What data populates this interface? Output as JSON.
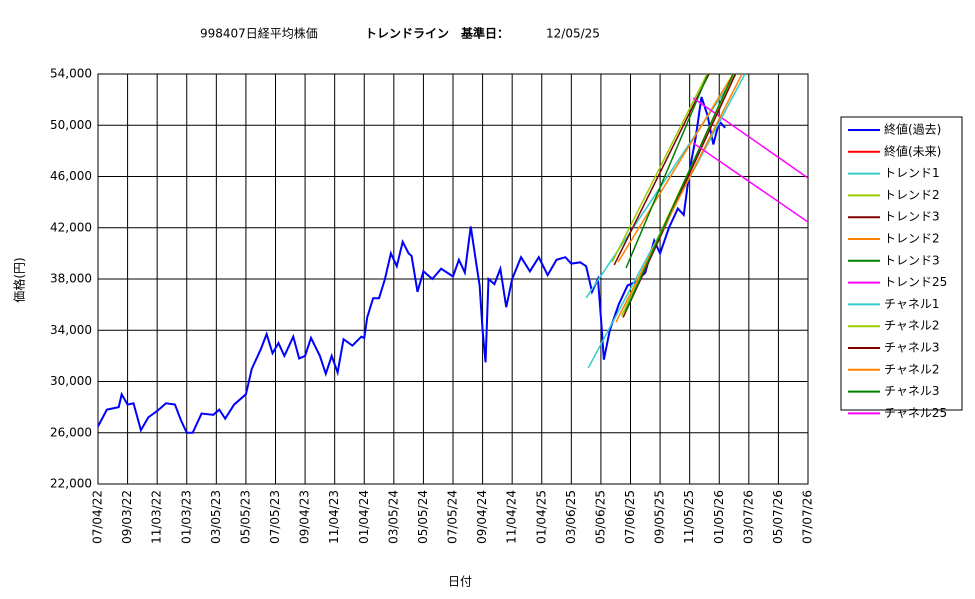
{
  "chart_data": {
    "type": "line",
    "title": "998407日経平均株価",
    "subtitle": "トレンドライン　基準日：",
    "base_date": "12/05/25",
    "x_label": "日付",
    "y_label": "価格(円)",
    "grid": true,
    "legend": "right",
    "xlim": [
      0,
      24
    ],
    "xticks": [
      {
        "value": 0,
        "label": "07/04/22"
      },
      {
        "value": 1,
        "label": "09/03/22"
      },
      {
        "value": 2,
        "label": "11/03/22"
      },
      {
        "value": 3,
        "label": "01/03/23"
      },
      {
        "value": 4,
        "label": "03/05/23"
      },
      {
        "value": 5,
        "label": "05/05/23"
      },
      {
        "value": 6,
        "label": "07/05/23"
      },
      {
        "value": 7,
        "label": "09/04/23"
      },
      {
        "value": 8,
        "label": "11/04/23"
      },
      {
        "value": 9,
        "label": "01/04/24"
      },
      {
        "value": 10,
        "label": "03/05/24"
      },
      {
        "value": 11,
        "label": "05/05/24"
      },
      {
        "value": 12,
        "label": "07/05/24"
      },
      {
        "value": 13,
        "label": "09/04/24"
      },
      {
        "value": 14,
        "label": "11/04/24"
      },
      {
        "value": 15,
        "label": "01/04/25"
      },
      {
        "value": 16,
        "label": "03/06/25"
      },
      {
        "value": 17,
        "label": "05/06/25"
      },
      {
        "value": 18,
        "label": "07/06/25"
      },
      {
        "value": 19,
        "label": "09/05/25"
      },
      {
        "value": 20,
        "label": "11/05/25"
      },
      {
        "value": 21,
        "label": "01/05/26"
      },
      {
        "value": 22,
        "label": "03/07/26"
      },
      {
        "value": 23,
        "label": "05/07/26"
      },
      {
        "value": 24,
        "label": "07/07/26"
      }
    ],
    "ylim": [
      22000,
      54000
    ],
    "yticks": [
      {
        "value": 22000,
        "label": "22,000"
      },
      {
        "value": 26000,
        "label": "26,000"
      },
      {
        "value": 30000,
        "label": "30,000"
      },
      {
        "value": 34000,
        "label": "34,000"
      },
      {
        "value": 38000,
        "label": "38,000"
      },
      {
        "value": 42000,
        "label": "42,000"
      },
      {
        "value": 46000,
        "label": "46,000"
      },
      {
        "value": 50000,
        "label": "50,000"
      },
      {
        "value": 54000,
        "label": "54,000"
      }
    ],
    "series": [
      {
        "name": "終値(過去)",
        "color": "#0000ff",
        "x": [
          0,
          0.3,
          0.7,
          0.8,
          1.0,
          1.2,
          1.45,
          1.7,
          2.0,
          2.3,
          2.6,
          2.8,
          3.0,
          3.2,
          3.5,
          3.9,
          4.1,
          4.3,
          4.6,
          5.0,
          5.2,
          5.5,
          5.7,
          5.9,
          6.1,
          6.3,
          6.6,
          6.8,
          7.0,
          7.2,
          7.5,
          7.7,
          7.9,
          8.1,
          8.3,
          8.6,
          8.9,
          9.0,
          9.1,
          9.3,
          9.5,
          9.7,
          9.9,
          10.1,
          10.3,
          10.5,
          10.6,
          10.8,
          11.0,
          11.3,
          11.6,
          12.0,
          12.2,
          12.4,
          12.6,
          12.8,
          12.9,
          13.0,
          13.1,
          13.2,
          13.4,
          13.6,
          13.8,
          14.0,
          14.3,
          14.6,
          14.9,
          15.2,
          15.5,
          15.8,
          16.0,
          16.3,
          16.5,
          16.7,
          16.9,
          17.0,
          17.1,
          17.3,
          17.6,
          17.9,
          18.2,
          18.5,
          18.8,
          19.0,
          19.3,
          19.6,
          19.8,
          20.0,
          20.2,
          20.4,
          20.6,
          20.8,
          21.0,
          21.2
        ],
        "values": [
          26500,
          27800,
          28000,
          29000,
          28200,
          28300,
          26200,
          27200,
          27700,
          28300,
          28200,
          27000,
          26000,
          26000,
          27500,
          27400,
          27800,
          27100,
          28200,
          29000,
          31000,
          32500,
          33700,
          32200,
          33000,
          32000,
          33500,
          31800,
          32000,
          33400,
          32000,
          30600,
          32000,
          30700,
          33300,
          32800,
          33500,
          33400,
          35000,
          36500,
          36500,
          38000,
          40000,
          39000,
          40900,
          40000,
          39800,
          37000,
          38600,
          38000,
          38800,
          38200,
          39500,
          38500,
          42100,
          39000,
          37500,
          34000,
          31500,
          38000,
          37600,
          38800,
          35800,
          38000,
          39700,
          38600,
          39700,
          38300,
          39500,
          39700,
          39200,
          39300,
          39000,
          37000,
          38000,
          35000,
          31700,
          34000,
          36000,
          37500,
          37800,
          38500,
          41000,
          40000,
          42000,
          43500,
          43000,
          46500,
          49000,
          52200,
          50800,
          48500,
          50300,
          49800
        ]
      },
      {
        "name": "終値(未来)",
        "color": "#ff0000",
        "x": [],
        "values": []
      },
      {
        "name": "トレンド1",
        "color": "#33cccc",
        "x": [
          16.5,
          21.57
        ],
        "values": [
          36520,
          54000
        ]
      },
      {
        "name": "トレンド2",
        "color": "#99cc00",
        "x": [
          17.38,
          20.59
        ],
        "values": [
          39330,
          54000
        ]
      },
      {
        "name": "トレンド3",
        "color": "#800000",
        "x": [
          17.45,
          20.65
        ],
        "values": [
          39100,
          54000
        ]
      },
      {
        "name": "トレンド2",
        "color": "#ff8000",
        "x": [
          17.58,
          21.47
        ],
        "values": [
          39330,
          54000
        ]
      },
      {
        "name": "トレンド3",
        "color": "#008000",
        "x": [
          17.85,
          20.62
        ],
        "values": [
          38860,
          54000
        ]
      },
      {
        "name": "トレンド25",
        "color": "#ff00ff",
        "x": [
          20.12,
          24
        ],
        "values": [
          52130,
          45880
        ]
      },
      {
        "name": "チャネル1",
        "color": "#33cccc",
        "x": [
          16.57,
          21.87
        ],
        "values": [
          31050,
          54000
        ]
      },
      {
        "name": "チャネル2",
        "color": "#99cc00",
        "x": [
          17.7,
          21.5
        ],
        "values": [
          35100,
          54000
        ]
      },
      {
        "name": "チャネル3",
        "color": "#800000",
        "x": [
          17.75,
          21.55
        ],
        "values": [
          35000,
          54000
        ]
      },
      {
        "name": "チャネル2",
        "color": "#ff8000",
        "x": [
          17.51,
          21.77
        ],
        "values": [
          34640,
          54000
        ]
      },
      {
        "name": "チャネル3",
        "color": "#008000",
        "x": [
          17.82,
          21.47
        ],
        "values": [
          35420,
          54000
        ]
      },
      {
        "name": "チャネル25",
        "color": "#ff00ff",
        "x": [
          20.12,
          24
        ],
        "values": [
          48610,
          42450
        ]
      }
    ]
  }
}
